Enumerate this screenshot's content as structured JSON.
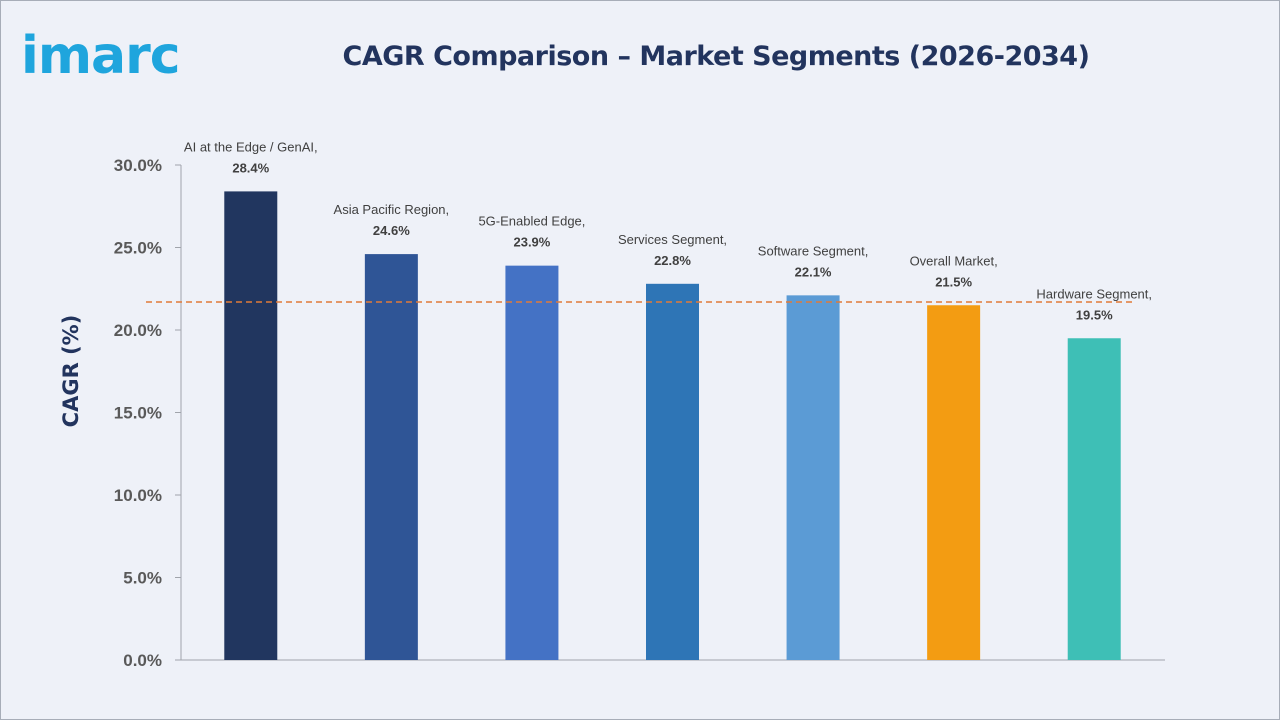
{
  "brand": {
    "logo_text": "imarc",
    "logo_color": "#1fa5dd"
  },
  "chart_data": {
    "type": "bar",
    "title": "CAGR Comparison – Market Segments (2026-2034)",
    "xlabel": "",
    "ylabel": "CAGR (%)",
    "ylim": [
      0,
      30
    ],
    "yticks": [
      0,
      5,
      10,
      15,
      20,
      25,
      30
    ],
    "ytick_labels": [
      "0.0%",
      "5.0%",
      "10.0%",
      "15.0%",
      "20.0%",
      "25.0%",
      "30.0%"
    ],
    "grid": false,
    "legend": "none",
    "categories": [
      "AI at the Edge / GenAI",
      "Asia Pacific Region",
      "5G-Enabled Edge",
      "Services Segment",
      "Software Segment",
      "Overall Market",
      "Hardware Segment"
    ],
    "values": [
      28.4,
      24.6,
      23.9,
      22.8,
      22.1,
      21.5,
      19.5
    ],
    "value_labels": [
      "28.4%",
      "24.6%",
      "23.9%",
      "22.8%",
      "22.1%",
      "21.5%",
      "19.5%"
    ],
    "category_labels": [
      "AI at the Edge / GenAI,",
      "Asia Pacific Region,",
      "5G-Enabled Edge,",
      "Services Segment,",
      "Software Segment,",
      "Overall Market,",
      "Hardware Segment,"
    ],
    "colors": [
      "#21365f",
      "#2f5596",
      "#4472c5",
      "#2e75b6",
      "#5b9bd5",
      "#f39c12",
      "#3ebfb6"
    ],
    "reference_line": {
      "value": 21.7,
      "style": "dashed",
      "color": "#e07b39"
    }
  }
}
